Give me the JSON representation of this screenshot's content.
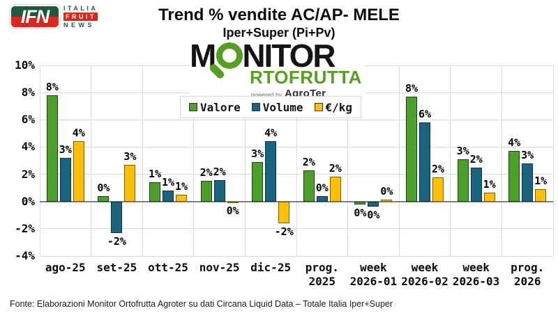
{
  "header": {
    "title": "Trend % vendite AC/AP- MELE",
    "subtitle": "Iper+Super (Pi+Pv)",
    "ifn_logo": {
      "acronym": "IFN",
      "line1": "ITALIA",
      "line2": "FRUIT",
      "line3": "NEWS"
    }
  },
  "monitor_logo": {
    "word_start": "M",
    "word_end": "NITOR",
    "line2": "RTOFRUTTA",
    "powered_by": "powered by",
    "brand": "AgroTer"
  },
  "colors": {
    "valore_green": "#4da02c",
    "volume_blue": "#1b647f",
    "eurkg_yellow": "#fec001",
    "ifn_green": "#1e5b3e",
    "ifn_red": "#e1251b",
    "monitor_green": "#55a01e",
    "gridline": "#d9d9d9",
    "zero_axis": "#7f7f7f"
  },
  "chart_data": {
    "type": "bar",
    "title": "Trend % vendite AC/AP- MELE",
    "subtitle": "Iper+Super (Pi+Pv)",
    "categories": [
      "ago-25",
      "set-25",
      "ott-25",
      "nov-25",
      "dic-25",
      "prog.\n2025",
      "week\n2026-01",
      "week\n2026-02",
      "week\n2026-03",
      "prog.\n2026"
    ],
    "series": [
      {
        "name": "Valore",
        "color": "#4da02c",
        "border": "#1e3d0c",
        "values": [
          7.8,
          0.4,
          1.4,
          1.5,
          2.9,
          2.3,
          -0.2,
          7.7,
          3.1,
          3.7
        ],
        "labels": [
          "8%",
          "0%",
          "1%",
          "2%",
          "3%",
          "2%",
          "0%",
          "8%",
          "3%",
          "4%"
        ]
      },
      {
        "name": "Volume",
        "color": "#1b647f",
        "border": "#0b2f3c",
        "values": [
          3.2,
          -2.3,
          0.8,
          1.55,
          4.45,
          0.4,
          -0.35,
          5.8,
          2.5,
          2.8
        ],
        "labels": [
          "3%",
          "-2%",
          "1%",
          "2%",
          "4%",
          "0%",
          "0%",
          "6%",
          "2%",
          "3%"
        ]
      },
      {
        "name": "€/kg",
        "color": "#fec001",
        "border": "#756000",
        "values": [
          4.45,
          2.7,
          0.5,
          -0.07,
          -1.6,
          1.85,
          0.15,
          1.75,
          0.65,
          0.9
        ],
        "labels": [
          "4%",
          "3%",
          "1%",
          "0%",
          "-2%",
          "2%",
          "0%",
          "2%",
          "1%",
          "1%"
        ]
      }
    ],
    "ylim": [
      -4,
      10
    ],
    "ytick_values": [
      10,
      8,
      6,
      4,
      2,
      0,
      -2,
      -4
    ],
    "ytick_labels": [
      "10%",
      "8%",
      "6%",
      "4%",
      "2%",
      "0%",
      "-2%",
      "-4%"
    ],
    "grid": true,
    "legend_position": "top-center",
    "legend_labels": [
      "Valore",
      "Volume",
      "€/kg"
    ]
  },
  "footer": {
    "source": "Fonte: Elaborazioni Monitor Ortofrutta Agroter su dati Circana Liquid Data – Totale Italia Iper+Super"
  }
}
